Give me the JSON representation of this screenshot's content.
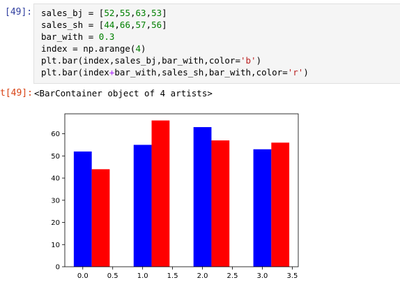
{
  "input_prompt": "[49]:",
  "code": {
    "line1": {
      "var": "sales_bj",
      "eq": " = ",
      "open": "[",
      "vals": [
        "52",
        "55",
        "63",
        "53"
      ],
      "close": "]"
    },
    "line2": {
      "var": "sales_sh",
      "eq": " = ",
      "open": "[",
      "vals": [
        "44",
        "66",
        "57",
        "56"
      ],
      "close": "]"
    },
    "line3": {
      "var": "bar_with",
      "eq": " = ",
      "val": "0.3"
    },
    "line4": {
      "text": "index = np.arange(",
      "val": "4",
      "close": ")"
    },
    "line5": {
      "text": "plt.bar(index,sales_bj,bar_with,color=",
      "str": "'b'",
      "close": ")"
    },
    "line6": {
      "pre": "plt.bar(index",
      "op": "+",
      "mid": "bar_with,sales_sh,bar_with,color=",
      "str": "'r'",
      "close": ")"
    }
  },
  "output_prompt": "t[49]:",
  "output_text": "<BarContainer object of 4 artists>",
  "colors": {
    "series1": "#0000ff",
    "series2": "#ff0000"
  },
  "chart_data": {
    "type": "bar",
    "x": [
      0,
      1,
      2,
      3
    ],
    "bar_width": 0.3,
    "series": [
      {
        "values": [
          52,
          55,
          63,
          53
        ],
        "color": "#0000ff"
      },
      {
        "values": [
          44,
          66,
          57,
          56
        ],
        "color": "#ff0000"
      }
    ],
    "xlim": [
      -0.3,
      3.6
    ],
    "ylim": [
      0,
      69
    ],
    "xticks": [
      "0.0",
      "0.5",
      "1.0",
      "1.5",
      "2.0",
      "2.5",
      "3.0",
      "3.5"
    ],
    "xtick_values": [
      0,
      0.5,
      1,
      1.5,
      2,
      2.5,
      3,
      3.5
    ],
    "yticks": [
      "0",
      "10",
      "20",
      "30",
      "40",
      "50",
      "60"
    ],
    "ytick_values": [
      0,
      10,
      20,
      30,
      40,
      50,
      60
    ],
    "grid": false
  }
}
